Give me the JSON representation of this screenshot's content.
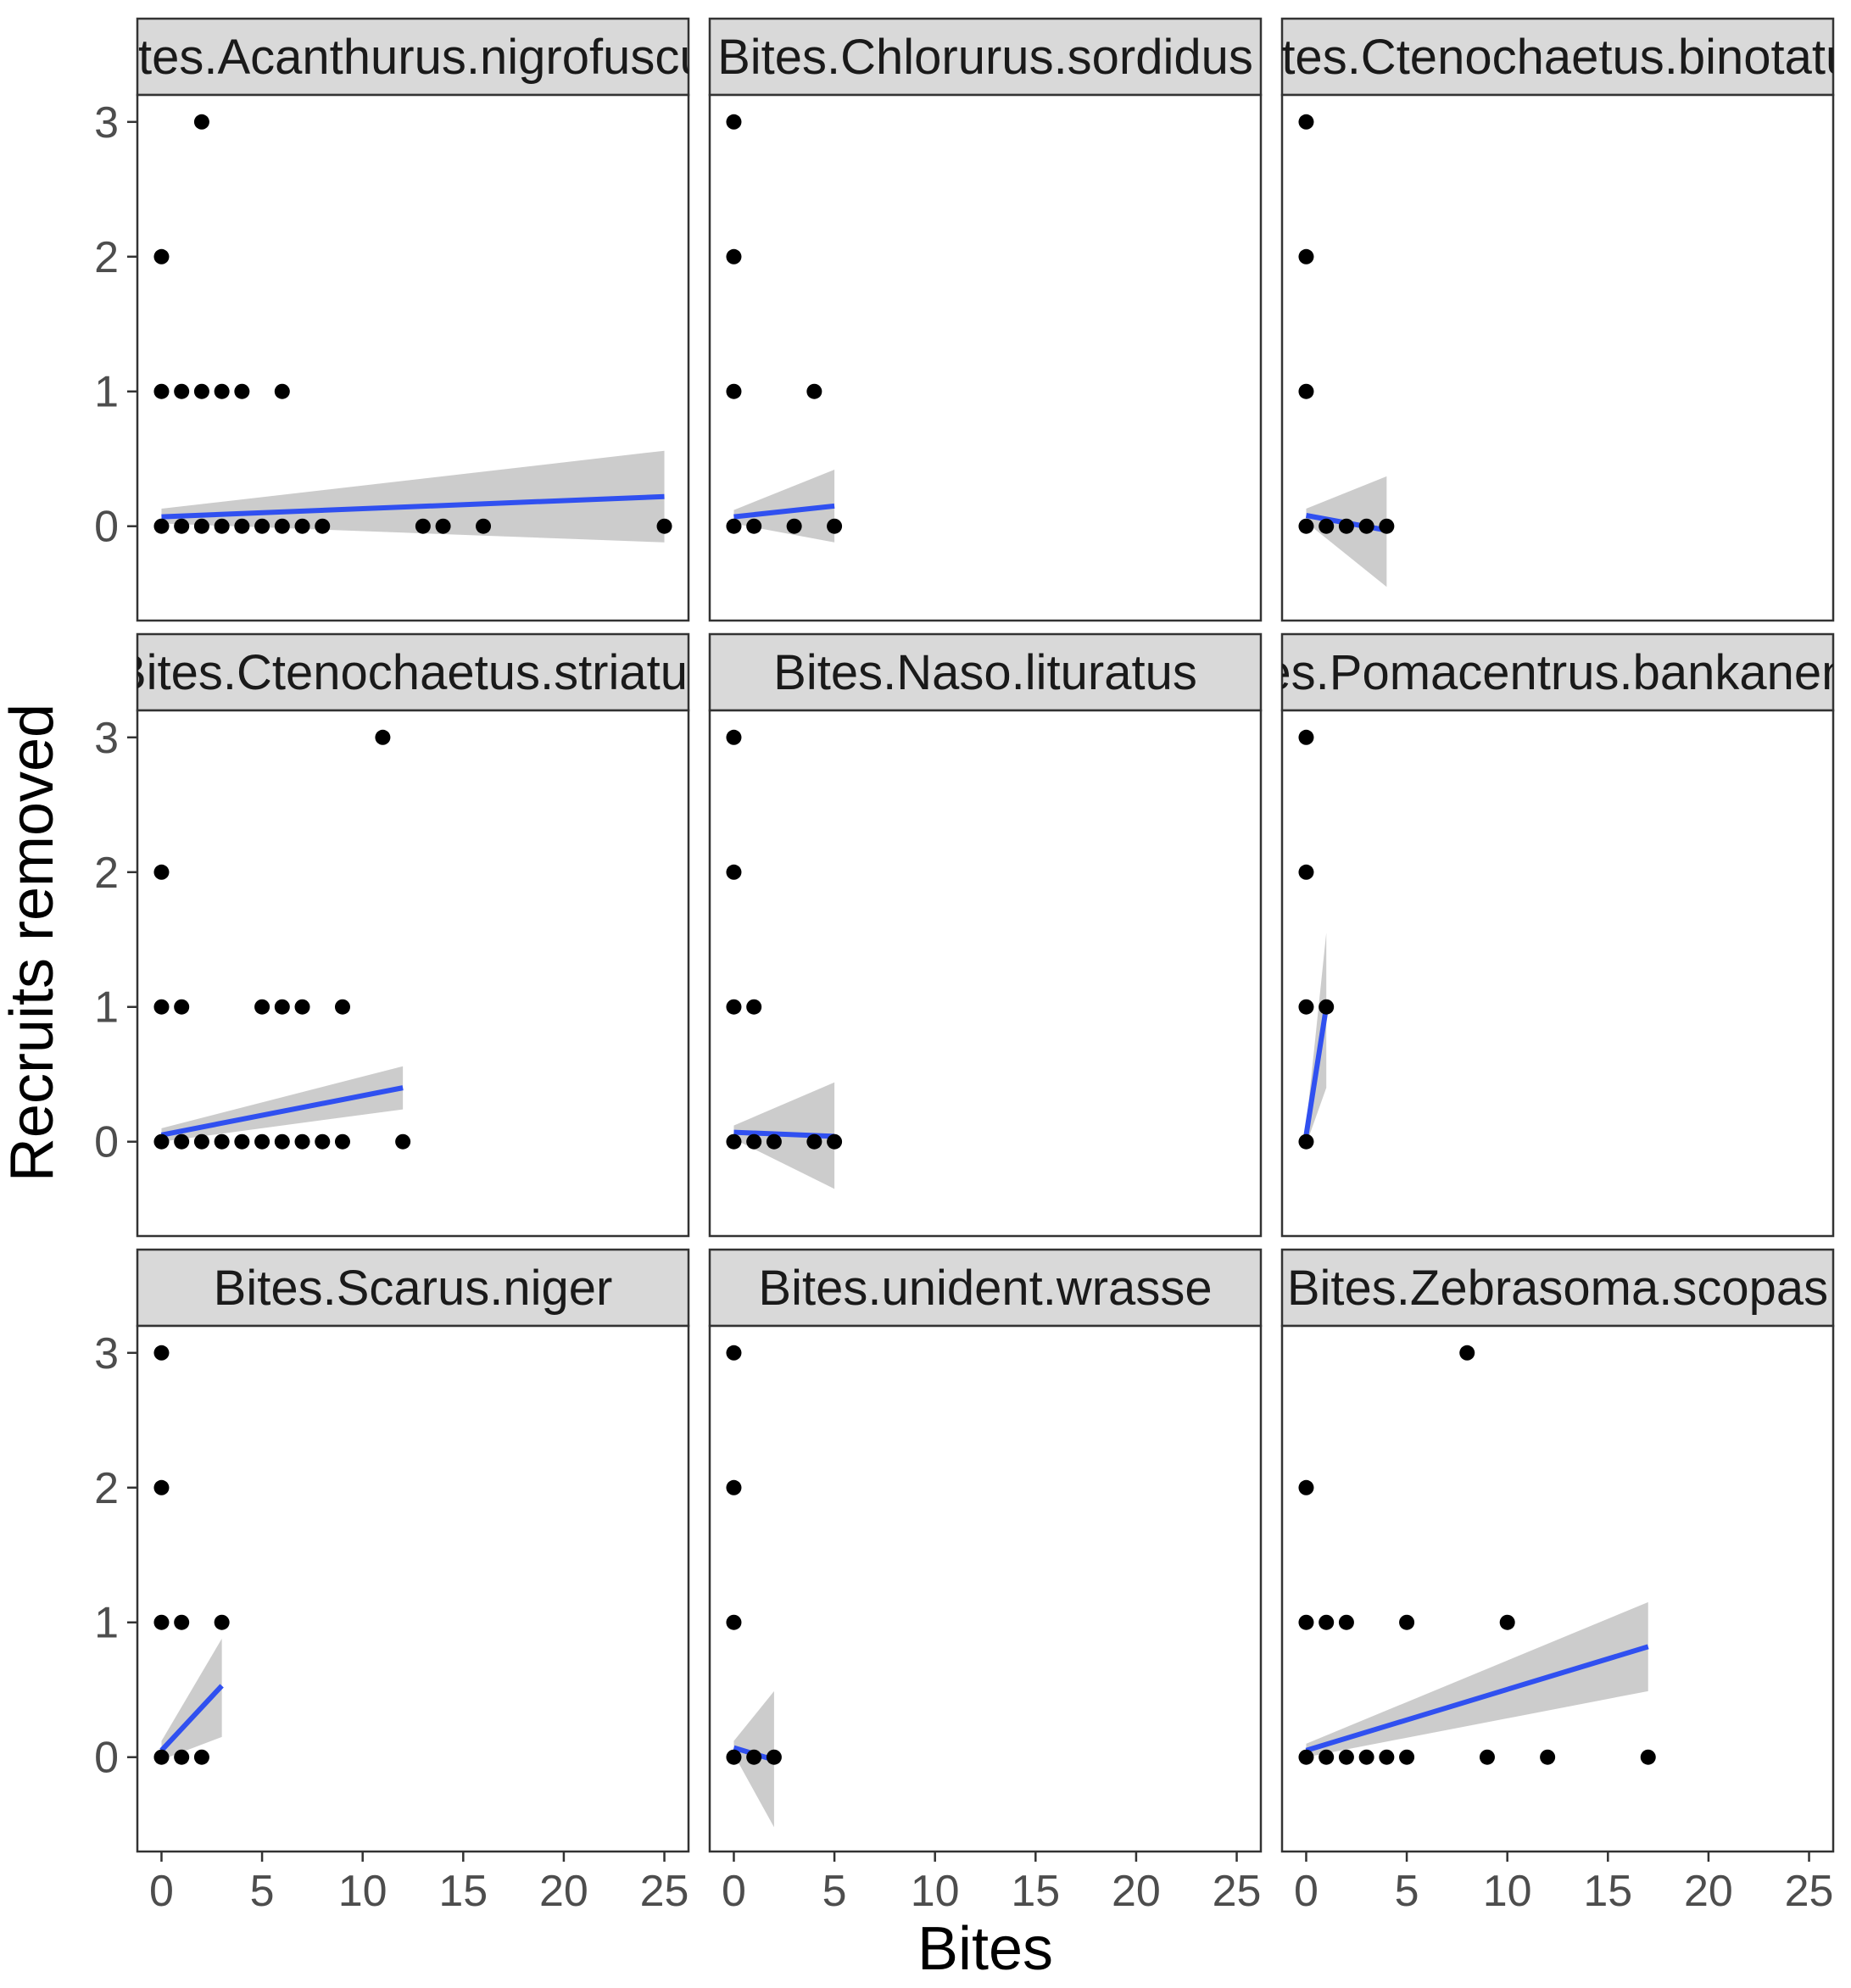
{
  "chart_data": {
    "type": "scatter",
    "facet_grid": {
      "rows": 3,
      "cols": 3
    },
    "xlabel": "Bites",
    "ylabel": "Recruits removed",
    "xlim": [
      -1.2,
      26.2
    ],
    "ylim": [
      -0.7,
      3.2
    ],
    "x_ticks": [
      0,
      5,
      10,
      15,
      20,
      25
    ],
    "y_ticks": [
      0,
      1,
      2,
      3
    ],
    "grid": false,
    "style": {
      "panel_border": "#333333",
      "strip_fill": "#d9d9d9",
      "point_color": "#000000",
      "line_color": "#3050f0",
      "ribbon_color": "#bfbfbf"
    },
    "panels": [
      {
        "strip_label": "Bites.Acanthurus.nigrofuscus",
        "points": [
          [
            0,
            0
          ],
          [
            1,
            0
          ],
          [
            2,
            0
          ],
          [
            3,
            0
          ],
          [
            4,
            0
          ],
          [
            5,
            0
          ],
          [
            6,
            0
          ],
          [
            7,
            0
          ],
          [
            8,
            0
          ],
          [
            13,
            0
          ],
          [
            14,
            0
          ],
          [
            16,
            0
          ],
          [
            25,
            0
          ],
          [
            0,
            1
          ],
          [
            1,
            1
          ],
          [
            2,
            1
          ],
          [
            3,
            1
          ],
          [
            4,
            1
          ],
          [
            6,
            1
          ],
          [
            0,
            2
          ],
          [
            2,
            3
          ]
        ],
        "fit": {
          "x": [
            0,
            25
          ],
          "y": [
            0.07,
            0.22
          ]
        },
        "band": {
          "x": [
            0,
            25
          ],
          "upper": [
            0.13,
            0.56
          ],
          "lower": [
            0.02,
            -0.12
          ]
        }
      },
      {
        "strip_label": "Bites.Chlorurus.sordidus",
        "points": [
          [
            0,
            0
          ],
          [
            1,
            0
          ],
          [
            3,
            0
          ],
          [
            5,
            0
          ],
          [
            0,
            1
          ],
          [
            4,
            1
          ],
          [
            0,
            2
          ],
          [
            0,
            3
          ]
        ],
        "fit": {
          "x": [
            0,
            5
          ],
          "y": [
            0.07,
            0.15
          ]
        },
        "band": {
          "x": [
            0,
            5
          ],
          "upper": [
            0.12,
            0.42
          ],
          "lower": [
            0.02,
            -0.12
          ]
        }
      },
      {
        "strip_label": "Bites.Ctenochaetus.binotatus",
        "points": [
          [
            0,
            0
          ],
          [
            1,
            0
          ],
          [
            2,
            0
          ],
          [
            3,
            0
          ],
          [
            4,
            0
          ],
          [
            0,
            1
          ],
          [
            0,
            2
          ],
          [
            0,
            3
          ]
        ],
        "fit": {
          "x": [
            0,
            4
          ],
          "y": [
            0.08,
            -0.03
          ]
        },
        "band": {
          "x": [
            0,
            4
          ],
          "upper": [
            0.13,
            0.37
          ],
          "lower": [
            0.03,
            -0.45
          ]
        }
      },
      {
        "strip_label": "Bites.Ctenochaetus.striatus",
        "points": [
          [
            0,
            0
          ],
          [
            1,
            0
          ],
          [
            2,
            0
          ],
          [
            3,
            0
          ],
          [
            4,
            0
          ],
          [
            5,
            0
          ],
          [
            6,
            0
          ],
          [
            7,
            0
          ],
          [
            8,
            0
          ],
          [
            9,
            0
          ],
          [
            12,
            0
          ],
          [
            0,
            1
          ],
          [
            1,
            1
          ],
          [
            5,
            1
          ],
          [
            6,
            1
          ],
          [
            7,
            1
          ],
          [
            9,
            1
          ],
          [
            0,
            2
          ],
          [
            11,
            3
          ]
        ],
        "fit": {
          "x": [
            0,
            12
          ],
          "y": [
            0.05,
            0.4
          ]
        },
        "band": {
          "x": [
            0,
            12
          ],
          "upper": [
            0.1,
            0.56
          ],
          "lower": [
            0.0,
            0.24
          ]
        }
      },
      {
        "strip_label": "Bites.Naso.lituratus",
        "points": [
          [
            0,
            0
          ],
          [
            1,
            0
          ],
          [
            2,
            0
          ],
          [
            4,
            0
          ],
          [
            5,
            0
          ],
          [
            0,
            1
          ],
          [
            1,
            1
          ],
          [
            0,
            2
          ],
          [
            0,
            3
          ]
        ],
        "fit": {
          "x": [
            0,
            5
          ],
          "y": [
            0.07,
            0.04
          ]
        },
        "band": {
          "x": [
            0,
            5
          ],
          "upper": [
            0.12,
            0.44
          ],
          "lower": [
            0.02,
            -0.35
          ]
        }
      },
      {
        "strip_label": "Bites.Pomacentrus.bankanensis",
        "points": [
          [
            0,
            0
          ],
          [
            0,
            1
          ],
          [
            1,
            1
          ],
          [
            0,
            2
          ],
          [
            0,
            3
          ]
        ],
        "fit": {
          "x": [
            0,
            1
          ],
          "y": [
            0.05,
            1.0
          ]
        },
        "band": {
          "x": [
            0,
            1
          ],
          "upper": [
            0.12,
            1.55
          ],
          "lower": [
            -0.02,
            0.4
          ]
        }
      },
      {
        "strip_label": "Bites.Scarus.niger",
        "points": [
          [
            0,
            0
          ],
          [
            1,
            0
          ],
          [
            2,
            0
          ],
          [
            0,
            1
          ],
          [
            1,
            1
          ],
          [
            3,
            1
          ],
          [
            0,
            2
          ],
          [
            0,
            3
          ]
        ],
        "fit": {
          "x": [
            0,
            3
          ],
          "y": [
            0.05,
            0.53
          ]
        },
        "band": {
          "x": [
            0,
            3
          ],
          "upper": [
            0.12,
            0.88
          ],
          "lower": [
            -0.02,
            0.15
          ]
        }
      },
      {
        "strip_label": "Bites.unident.wrasse",
        "points": [
          [
            0,
            0
          ],
          [
            1,
            0
          ],
          [
            2,
            0
          ],
          [
            0,
            1
          ],
          [
            0,
            2
          ],
          [
            0,
            3
          ]
        ],
        "fit": {
          "x": [
            0,
            2
          ],
          "y": [
            0.07,
            -0.02
          ]
        },
        "band": {
          "x": [
            0,
            2
          ],
          "upper": [
            0.12,
            0.49
          ],
          "lower": [
            0.02,
            -0.52
          ]
        }
      },
      {
        "strip_label": "Bites.Zebrasoma.scopas",
        "points": [
          [
            0,
            0
          ],
          [
            1,
            0
          ],
          [
            2,
            0
          ],
          [
            3,
            0
          ],
          [
            4,
            0
          ],
          [
            5,
            0
          ],
          [
            9,
            0
          ],
          [
            12,
            0
          ],
          [
            17,
            0
          ],
          [
            0,
            1
          ],
          [
            1,
            1
          ],
          [
            2,
            1
          ],
          [
            5,
            1
          ],
          [
            10,
            1
          ],
          [
            0,
            2
          ],
          [
            8,
            3
          ]
        ],
        "fit": {
          "x": [
            0,
            17
          ],
          "y": [
            0.05,
            0.82
          ]
        },
        "band": {
          "x": [
            0,
            17
          ],
          "upper": [
            0.1,
            1.15
          ],
          "lower": [
            0.0,
            0.49
          ]
        }
      }
    ]
  }
}
